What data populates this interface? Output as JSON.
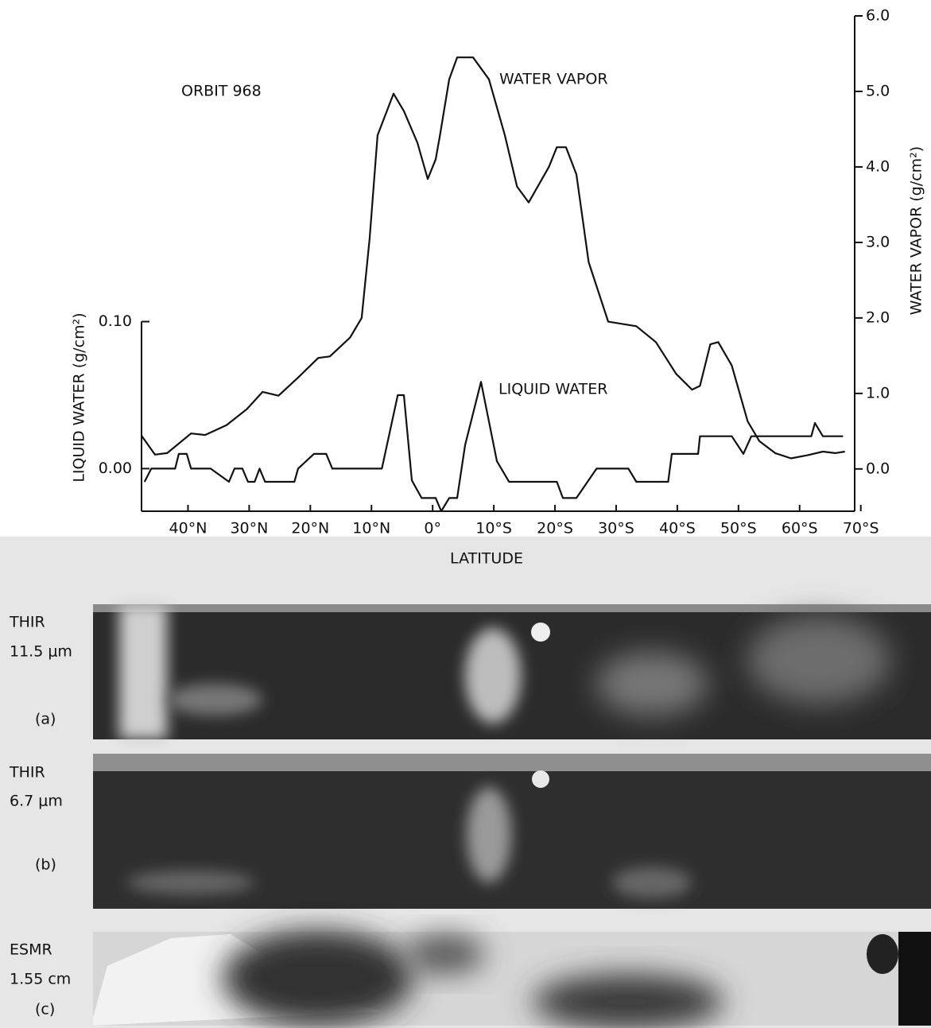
{
  "chart_data": {
    "type": "line",
    "annotations": [
      "ORBIT 968",
      "WATER VAPOR",
      "LIQUID WATER"
    ],
    "ylabel": "LIQUID WATER   (g/cm²)",
    "y2label": "WATER VAPOR   (g/cm²)",
    "xlabel": "LATITUDE",
    "xlim": [
      47.6,
      -69
    ],
    "xticks": [
      {
        "value": 40,
        "label": "40°N"
      },
      {
        "value": 30,
        "label": "30°N"
      },
      {
        "value": 20,
        "label": "20°N"
      },
      {
        "value": 10,
        "label": "10°N"
      },
      {
        "value": 0,
        "label": "0°"
      },
      {
        "value": -10,
        "label": "10°S"
      },
      {
        "value": -20,
        "label": "20°S"
      },
      {
        "value": -30,
        "label": "30°S"
      },
      {
        "value": -40,
        "label": "40°S"
      },
      {
        "value": -50,
        "label": "50°S"
      },
      {
        "value": -60,
        "label": "60°S"
      },
      {
        "value": -70,
        "label": "70°S"
      }
    ],
    "ylim": [
      -0.029,
      0.308
    ],
    "yticks": [
      {
        "value": 0,
        "label": "0.00"
      },
      {
        "value": 0.1,
        "label": "0.10"
      }
    ],
    "y2lim": [
      -0.56,
      6.0
    ],
    "y2ticks": [
      {
        "value": 0,
        "label": "0.0"
      },
      {
        "value": 1,
        "label": "1.0"
      },
      {
        "value": 2,
        "label": "2.0"
      },
      {
        "value": 3,
        "label": "3.0"
      },
      {
        "value": 4,
        "label": "4.0"
      },
      {
        "value": 5,
        "label": "5.0"
      },
      {
        "value": 6,
        "label": "6.0"
      }
    ],
    "series": [
      {
        "name": "WATER VAPOR",
        "axis": "y2",
        "color": "#111111",
        "x": [
          47.6,
          45.4,
          43.4,
          39.5,
          37.2,
          33.7,
          30.4,
          27.8,
          25.2,
          22,
          18.7,
          16.8,
          13.5,
          11.6,
          10.3,
          9,
          6.4,
          4.7,
          2.5,
          0.8,
          -0.5,
          -1.2,
          -2.7,
          -4,
          -6.6,
          -9.2,
          -11.8,
          -13.8,
          -15.7,
          -19,
          -20.3,
          -21.8,
          -23.5,
          -25.5,
          -28.7,
          -33.3,
          -36.5,
          -39.8,
          -42.4,
          -43.7,
          -45.4,
          -46.7,
          -48.9,
          -51.5,
          -53.4,
          -56,
          -58.6,
          -61.2,
          -63.8,
          -65.8,
          -67.4
        ],
        "values": [
          0.44,
          0.19,
          0.21,
          0.47,
          0.45,
          0.58,
          0.79,
          1.02,
          0.97,
          1.21,
          1.47,
          1.49,
          1.74,
          2.0,
          3.05,
          4.42,
          4.97,
          4.74,
          4.32,
          3.84,
          4.1,
          4.42,
          5.16,
          5.45,
          5.45,
          5.16,
          4.42,
          3.74,
          3.53,
          4.0,
          4.26,
          4.26,
          3.9,
          2.74,
          1.95,
          1.89,
          1.68,
          1.26,
          1.05,
          1.1,
          1.65,
          1.68,
          1.37,
          0.63,
          0.37,
          0.21,
          0.14,
          0.18,
          0.23,
          0.21,
          0.23
        ]
      },
      {
        "name": "LIQUID WATER",
        "axis": "y",
        "color": "#111111",
        "x": [
          47.1,
          46,
          42.1,
          41.5,
          40.2,
          39.5,
          36.3,
          33.3,
          32.4,
          31.1,
          30.2,
          29.1,
          28.3,
          27.4,
          22.6,
          22,
          19.4,
          17.4,
          16.4,
          8.3,
          5.7,
          4.7,
          3.4,
          1.8,
          -0.5,
          -1.4,
          -2.7,
          -4,
          -5.3,
          -7.9,
          -9.2,
          -10.5,
          -12.5,
          -20.3,
          -21.3,
          -23.5,
          -26.8,
          -32,
          -33.3,
          -38.5,
          -39.1,
          -43.4,
          -43.7,
          -48.9,
          -50.8,
          -52.1,
          -61.9,
          -62.5,
          -63.8,
          -67.1
        ],
        "values": [
          -0.009,
          0,
          0,
          0.01,
          0.01,
          0,
          0,
          -0.009,
          0,
          0,
          -0.009,
          -0.009,
          0,
          -0.009,
          -0.009,
          0,
          0.01,
          0.01,
          0,
          0,
          0.05,
          0.05,
          -0.008,
          -0.02,
          -0.02,
          -0.029,
          -0.02,
          -0.02,
          0.016,
          0.059,
          0.032,
          0.005,
          -0.009,
          -0.009,
          -0.02,
          -0.02,
          0,
          0,
          -0.009,
          -0.009,
          0.01,
          0.01,
          0.022,
          0.022,
          0.01,
          0.022,
          0.022,
          0.031,
          0.022,
          0.022
        ]
      }
    ]
  },
  "panels": [
    {
      "sensor": "THIR",
      "band": "11.5 μm",
      "tag": "(a)"
    },
    {
      "sensor": "THIR",
      "band": "6.7 μm",
      "tag": "(b)"
    },
    {
      "sensor": "ESMR",
      "band": "1.55 cm",
      "tag": "(c)"
    }
  ]
}
